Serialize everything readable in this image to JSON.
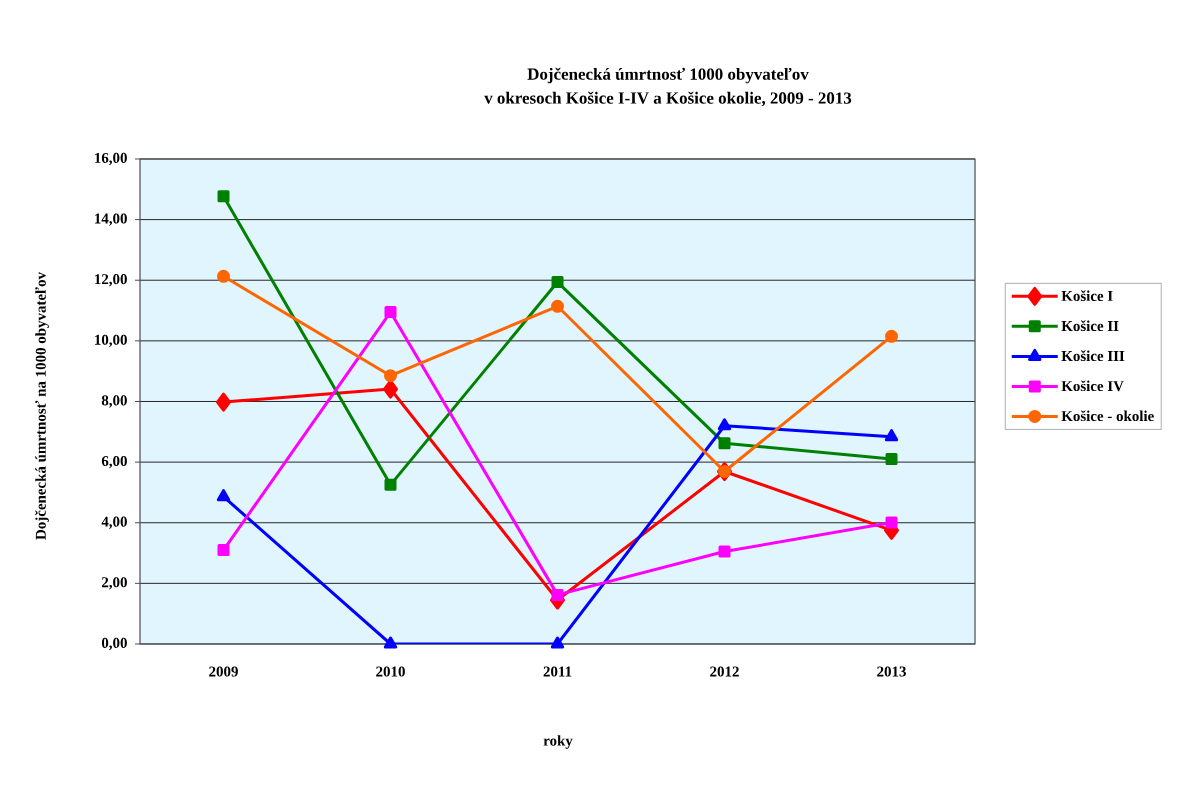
{
  "chart_data": {
    "type": "line",
    "title": "Dojčenecká úmrtnosť 1000 obyvateľov\nv okresoch Košice I-IV a Košice okolie, 2009 - 2013",
    "xlabel": "roky",
    "ylabel": "Dojčenecká úmrtnosť na 1000 obyvateľov",
    "categories": [
      "2009",
      "2010",
      "2011",
      "2012",
      "2013"
    ],
    "series": [
      {
        "name": "Košice I",
        "color": "#ff0000",
        "marker": "diamond",
        "values": [
          7.98,
          8.41,
          1.45,
          5.69,
          3.75
        ]
      },
      {
        "name": "Košice II",
        "color": "#008000",
        "marker": "square",
        "values": [
          14.77,
          5.25,
          11.94,
          6.62,
          6.1
        ]
      },
      {
        "name": "Košice III",
        "color": "#0000ff",
        "marker": "triangle",
        "values": [
          4.86,
          0,
          0,
          7.2,
          6.84
        ]
      },
      {
        "name": "Košice IV",
        "color": "#ff00ff",
        "marker": "square",
        "values": [
          3.1,
          10.95,
          1.62,
          3.05,
          4.01
        ]
      },
      {
        "name": "Košice - okolie",
        "color": "#ff6600",
        "marker": "circle",
        "values": [
          12.13,
          8.85,
          11.14,
          5.69,
          10.15
        ]
      }
    ],
    "ylim": [
      0,
      16
    ],
    "yticks": [
      {
        "value": 0,
        "label": "0,00"
      },
      {
        "value": 2,
        "label": "2,00"
      },
      {
        "value": 4,
        "label": "4,00"
      },
      {
        "value": 6,
        "label": "6,00"
      },
      {
        "value": 8,
        "label": "8,00"
      },
      {
        "value": 10,
        "label": "10,00"
      },
      {
        "value": 12,
        "label": "12,00"
      },
      {
        "value": 14,
        "label": "14,00"
      },
      {
        "value": 16,
        "label": "16,00"
      }
    ],
    "grid": "y",
    "legend": "right",
    "line_style": "solid"
  }
}
